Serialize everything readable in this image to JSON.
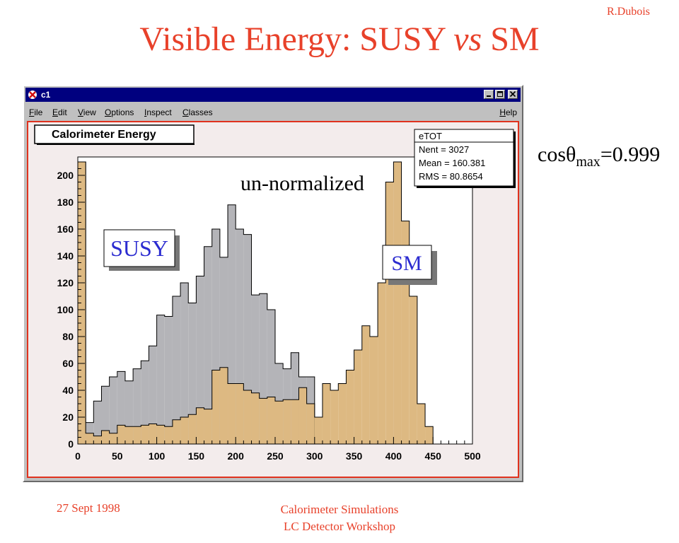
{
  "slide": {
    "author": "R.Dubois",
    "title_part1": "Visible Energy: SUSY ",
    "title_vs": "vs",
    "title_part2": " SM",
    "cos_prefix": "cosθ",
    "cos_sub": "max",
    "cos_value": "=0.999",
    "footer_date": "27 Sept 1998",
    "footer_line1": "Calorimeter Simulations",
    "footer_line2": "LC Detector Workshop"
  },
  "window": {
    "title": "c1",
    "menus": [
      "File",
      "Edit",
      "View",
      "Options",
      "Inspect",
      "Classes"
    ],
    "help": "Help"
  },
  "plot": {
    "title": "Calorimeter Energy",
    "stats": {
      "name": "eTOT",
      "nent": "Nent = 3027",
      "mean": "Mean = 160.381",
      "rms": "RMS  = 80.8654"
    },
    "annotation": "un-normalized",
    "susy_label": "SUSY",
    "sm_label": "SM",
    "colors": {
      "susy": "#b4b4b8",
      "sm": "#ddb982",
      "frame": "#f3ecec",
      "label_blue": "#2b2bd0"
    }
  },
  "chart_data": {
    "type": "histogram",
    "title": "Calorimeter Energy",
    "bin_width": 10,
    "xlim": [
      0,
      500
    ],
    "ylim": [
      0,
      210
    ],
    "x_ticks": [
      0,
      50,
      100,
      150,
      200,
      250,
      300,
      350,
      400,
      450,
      500
    ],
    "y_ticks": [
      0,
      20,
      40,
      60,
      80,
      100,
      120,
      140,
      160,
      180,
      200
    ],
    "bin_edges": [
      0,
      10,
      20,
      30,
      40,
      50,
      60,
      70,
      80,
      90,
      100,
      110,
      120,
      130,
      140,
      150,
      160,
      170,
      180,
      190,
      200,
      210,
      220,
      230,
      240,
      250,
      260,
      270,
      280,
      290,
      300,
      310,
      320,
      330,
      340,
      350,
      360,
      370,
      380,
      390,
      400,
      410,
      420,
      430,
      440,
      450,
      460,
      470,
      480,
      490,
      500
    ],
    "series": [
      {
        "name": "SUSY",
        "values": [
          210,
          16,
          32,
          43,
          50,
          54,
          47,
          56,
          62,
          73,
          96,
          95,
          110,
          120,
          105,
          125,
          147,
          160,
          139,
          178,
          160,
          156,
          111,
          112,
          100,
          60,
          56,
          68,
          50,
          50,
          0,
          0,
          0,
          0,
          0,
          0,
          0,
          0,
          0,
          0,
          0,
          0,
          0,
          0,
          0,
          0,
          0,
          0,
          0,
          0
        ]
      },
      {
        "name": "SM",
        "values": [
          210,
          8,
          6,
          10,
          8,
          14,
          13,
          13,
          14,
          15,
          14,
          13,
          18,
          20,
          22,
          27,
          26,
          55,
          57,
          45,
          45,
          40,
          38,
          34,
          35,
          32,
          33,
          33,
          42,
          30,
          20,
          45,
          40,
          45,
          55,
          70,
          88,
          80,
          120,
          195,
          210,
          166,
          110,
          30,
          13,
          0,
          0,
          0,
          0,
          0
        ]
      }
    ]
  }
}
